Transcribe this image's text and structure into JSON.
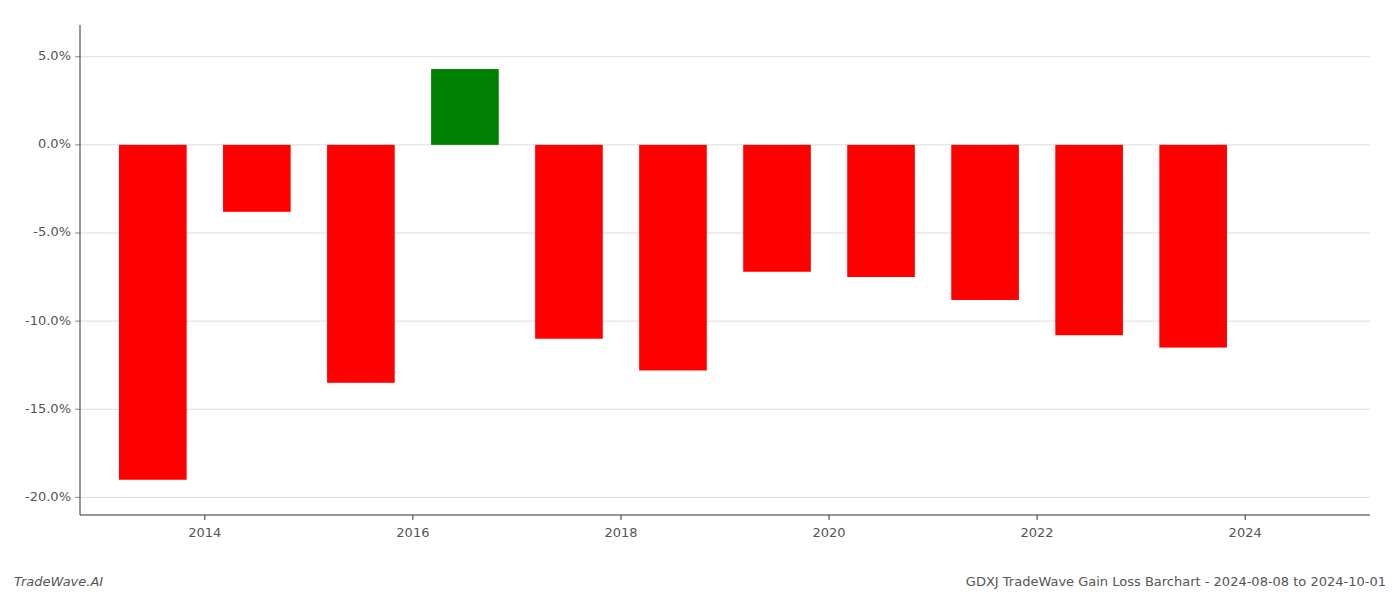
{
  "chart_data": {
    "type": "bar",
    "title": "GDXJ TradeWave Gain Loss Barchart - 2024-08-08 to 2024-10-01",
    "annotations": [
      "TradeWave.AI"
    ],
    "x": [
      2013.5,
      2014.5,
      2015.5,
      2016.5,
      2017.5,
      2018.5,
      2019.5,
      2020.5,
      2021.5,
      2022.5,
      2023.5
    ],
    "values": [
      -19.0,
      -3.8,
      -13.5,
      4.3,
      -11.0,
      -12.8,
      -7.2,
      -7.5,
      -8.8,
      -10.8,
      -11.5
    ],
    "colors": [
      "#ff0000",
      "#ff0000",
      "#ff0000",
      "#008000",
      "#ff0000",
      "#ff0000",
      "#ff0000",
      "#ff0000",
      "#ff0000",
      "#ff0000",
      "#ff0000"
    ],
    "xlim": [
      2012.8,
      2025.2
    ],
    "xticks": [
      2014,
      2016,
      2018,
      2020,
      2022,
      2024
    ],
    "ylim": [
      -21.0,
      6.8
    ],
    "yticks": [
      {
        "value": -20.0,
        "label": "-20.0%"
      },
      {
        "value": -15.0,
        "label": "-15.0%"
      },
      {
        "value": -10.0,
        "label": "-10.0%"
      },
      {
        "value": -5.0,
        "label": "-5.0%"
      },
      {
        "value": 0.0,
        "label": "0.0%"
      },
      {
        "value": 5.0,
        "label": "5.0%"
      }
    ],
    "grid": true
  }
}
